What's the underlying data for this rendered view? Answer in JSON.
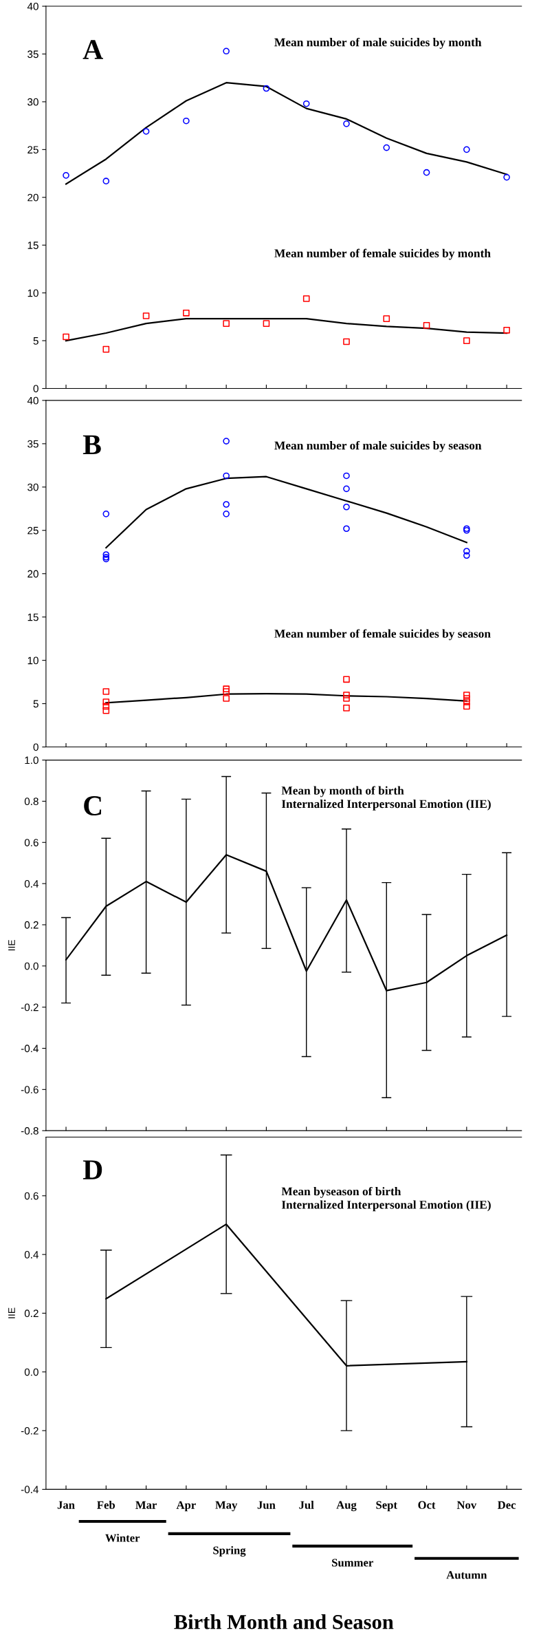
{
  "chart_data": [
    {
      "type": "scatter",
      "annotations": [
        "A",
        "Mean number of male suicides by month",
        "Mean number of female suicides by month"
      ],
      "categories": [
        null,
        null,
        null,
        null,
        null,
        null,
        null,
        null,
        null,
        null,
        null,
        null
      ],
      "ylim": [
        0,
        40
      ],
      "yticks": [
        0,
        5,
        10,
        15,
        20,
        25,
        30,
        35,
        40
      ],
      "tick_labels": "y",
      "series": [
        {
          "marker": "circle",
          "color": "#0000ff",
          "values": [
            22.3,
            21.7,
            26.9,
            28.0,
            35.3,
            31.4,
            29.8,
            27.7,
            25.2,
            22.6,
            25.0,
            22.1
          ]
        },
        {
          "type": "line",
          "color": "#000000",
          "values": [
            21.4,
            24.0,
            27.3,
            30.1,
            32.0,
            31.6,
            29.3,
            28.2,
            26.2,
            24.6,
            23.7,
            22.4
          ]
        },
        {
          "marker": "square",
          "color": "#ff0000",
          "values": [
            5.4,
            4.1,
            7.6,
            7.9,
            6.8,
            6.8,
            9.4,
            4.9,
            7.3,
            6.6,
            5.0,
            6.1
          ]
        },
        {
          "type": "line",
          "color": "#000000",
          "values": [
            5.0,
            5.8,
            6.8,
            7.3,
            7.3,
            7.3,
            7.3,
            6.8,
            6.5,
            6.3,
            5.9,
            5.8
          ]
        }
      ]
    },
    {
      "type": "scatter",
      "annotations": [
        "B",
        "Mean number of male suicides by season",
        "Mean number of female suicides by season"
      ],
      "categories": [
        null,
        null,
        null,
        null,
        null,
        null,
        null,
        null,
        null,
        null,
        null,
        null
      ],
      "ylim": [
        0,
        40
      ],
      "yticks": [
        0,
        5,
        10,
        15,
        20,
        25,
        30,
        35,
        40
      ],
      "tick_labels": "y",
      "series": [
        {
          "marker": "circle",
          "color": "#0000ff",
          "values": [
            null,
            26.9,
            null,
            null,
            35.3,
            null,
            null,
            31.3,
            null,
            null,
            25.2,
            null
          ]
        },
        {
          "marker": "circle",
          "color": "#0000ff",
          "values": [
            null,
            22.2,
            null,
            null,
            31.3,
            null,
            null,
            29.8,
            null,
            null,
            25.0,
            null
          ]
        },
        {
          "marker": "circle",
          "color": "#0000ff",
          "values": [
            null,
            21.9,
            null,
            null,
            28.0,
            null,
            null,
            27.7,
            null,
            null,
            22.6,
            null
          ]
        },
        {
          "marker": "circle",
          "color": "#0000ff",
          "values": [
            null,
            21.7,
            null,
            null,
            26.9,
            null,
            null,
            25.2,
            null,
            null,
            22.1,
            null
          ]
        },
        {
          "type": "line",
          "color": "#000000",
          "values": [
            null,
            23.0,
            27.4,
            29.8,
            31.0,
            31.2,
            29.8,
            28.4,
            27.0,
            25.4,
            23.6,
            null
          ]
        },
        {
          "marker": "square",
          "color": "#ff0000",
          "values": [
            null,
            6.4,
            null,
            null,
            6.7,
            null,
            null,
            7.8,
            null,
            null,
            6.0,
            null
          ]
        },
        {
          "marker": "square",
          "color": "#ff0000",
          "values": [
            null,
            5.2,
            null,
            null,
            6.4,
            null,
            null,
            6.0,
            null,
            null,
            5.6,
            null
          ]
        },
        {
          "marker": "square",
          "color": "#ff0000",
          "values": [
            null,
            4.7,
            null,
            null,
            5.6,
            null,
            null,
            5.6,
            null,
            null,
            5.2,
            null
          ]
        },
        {
          "marker": "square",
          "color": "#ff0000",
          "values": [
            null,
            4.2,
            null,
            null,
            null,
            null,
            null,
            4.5,
            null,
            null,
            4.7,
            null
          ]
        },
        {
          "type": "line",
          "color": "#000000",
          "values": [
            null,
            5.1,
            5.4,
            5.7,
            6.1,
            6.15,
            6.1,
            5.9,
            5.8,
            5.6,
            5.3,
            null
          ]
        }
      ]
    },
    {
      "type": "line",
      "annotations": [
        "C",
        "Mean by month of birth\nInternalized Interpersonal Emotion (IIE)"
      ],
      "ylabel": "IIE",
      "categories": [
        null,
        null,
        null,
        null,
        null,
        null,
        null,
        null,
        null,
        null,
        null,
        null
      ],
      "ylim": [
        -0.8,
        1.0
      ],
      "tick_labels": "y",
      "yticks": [
        {
          "value": -0.8,
          "label": "-0.8"
        },
        {
          "value": -0.6,
          "label": "-0.6"
        },
        {
          "value": -0.4,
          "label": "-0.4"
        },
        {
          "value": -0.2,
          "label": "-0.2"
        },
        {
          "value": 0,
          "label": "0.0"
        },
        {
          "value": 0.2,
          "label": "0.2"
        },
        {
          "value": 0.4,
          "label": "0.4"
        },
        {
          "value": 0.6,
          "label": "0.6"
        },
        {
          "value": 0.8,
          "label": "0.8"
        },
        {
          "value": 1.0,
          "label": "1.0"
        }
      ],
      "series": [
        {
          "color": "#000000",
          "values": [
            0.03,
            0.29,
            0.41,
            0.31,
            0.54,
            0.46,
            -0.025,
            0.32,
            -0.12,
            -0.08,
            0.05,
            0.15
          ],
          "errors": [
            [
              -0.18,
              0.235
            ],
            [
              -0.045,
              0.62
            ],
            [
              -0.035,
              0.85
            ],
            [
              -0.19,
              0.81
            ],
            [
              0.16,
              0.92
            ],
            [
              0.085,
              0.84
            ],
            [
              -0.44,
              0.38
            ],
            [
              -0.03,
              0.665
            ],
            [
              -0.64,
              0.405
            ],
            [
              -0.41,
              0.25
            ],
            [
              -0.345,
              0.445
            ],
            [
              -0.245,
              0.55
            ]
          ]
        }
      ]
    },
    {
      "type": "line",
      "annotations": [
        "D",
        "Mean byseason of birth\nInternalized Interpersonal Emotion (IIE)",
        "Winter",
        "Spring",
        "Summer",
        "Autumn"
      ],
      "ylabel": "IIE",
      "xlabel": "Birth Month and Season",
      "categories": [
        "Jan",
        "Feb",
        "Mar",
        "Apr",
        "May",
        "Jun",
        "Jul",
        "Aug",
        "Sept",
        "Oct",
        "Nov",
        "Dec"
      ],
      "ylim": [
        -0.4,
        0.8
      ],
      "yticks": [
        {
          "value": -0.4,
          "label": "-0.4"
        },
        {
          "value": -0.2,
          "label": "-0.2"
        },
        {
          "value": 0,
          "label": "0.0"
        },
        {
          "value": 0.2,
          "label": "0.2"
        },
        {
          "value": 0.4,
          "label": "0.4"
        },
        {
          "value": 0.6,
          "label": "0.6"
        }
      ],
      "series": [
        {
          "color": "#000000",
          "values": [
            null,
            0.249,
            null,
            null,
            0.503,
            null,
            null,
            0.021,
            null,
            null,
            0.035,
            null
          ],
          "errors": [
            null,
            [
              0.083,
              0.415
            ],
            null,
            null,
            [
              0.267,
              0.739
            ],
            null,
            null,
            [
              -0.2,
              0.243
            ],
            null,
            null,
            [
              -0.187,
              0.257
            ],
            null
          ]
        }
      ]
    }
  ]
}
